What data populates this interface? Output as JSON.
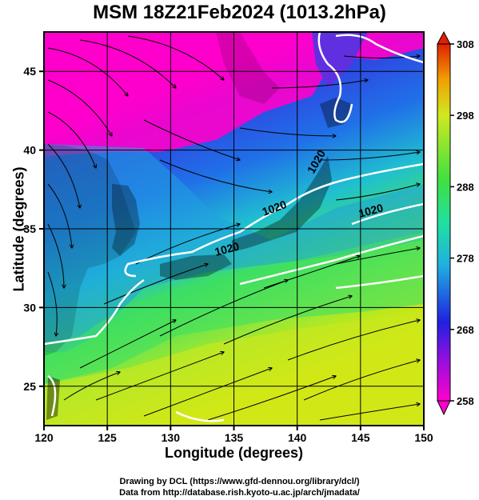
{
  "title": "MSM 18Z21Feb2024 (1013.2hPa)",
  "x_axis": {
    "label": "Longitude (degrees)",
    "range": [
      120,
      150
    ],
    "ticks": [
      "120",
      "125",
      "130",
      "135",
      "140",
      "145",
      "150"
    ],
    "tick_values": [
      120,
      125,
      130,
      135,
      140,
      145,
      150
    ]
  },
  "y_axis": {
    "label": "Latitude  (degrees)",
    "range": [
      22.5,
      47.5
    ],
    "ticks": [
      "25",
      "30",
      "35",
      "40",
      "45"
    ],
    "tick_values": [
      25,
      30,
      35,
      40,
      45
    ]
  },
  "colorbar": {
    "range": [
      258,
      308
    ],
    "ticks": [
      "258",
      "268",
      "278",
      "288",
      "298",
      "308"
    ],
    "tick_values": [
      258,
      268,
      278,
      288,
      298,
      308
    ]
  },
  "contour_labels": [
    "1020",
    "1020",
    "1020",
    "1020"
  ],
  "credits": {
    "line1": "Drawing by DCL (https://www.gfd-dennou.org/library/dcl/)",
    "line2": "Data from http://database.rish.kyoto-u.ac.jp/arch/jmadata/"
  },
  "colors": {
    "cold": "#ff00cc",
    "cool": "#2040e0",
    "mid": "#20d0c0",
    "warm": "#40e040",
    "hot": "#e8e800",
    "land": "#000000",
    "contour": "#ffffff"
  }
}
